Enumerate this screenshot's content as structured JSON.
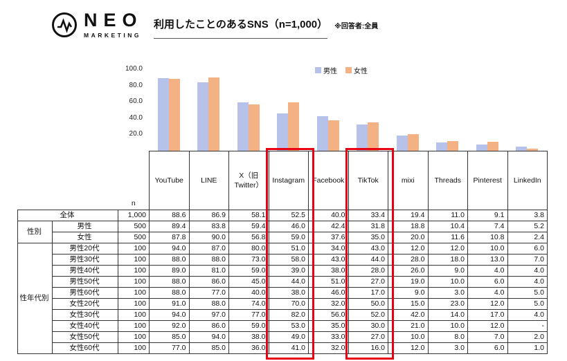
{
  "header": {
    "logo_name": "NEO",
    "logo_sub": "MARKETING",
    "title": "利用したことのあるSNS（n=1,000）",
    "note": "※回答者:全員"
  },
  "colors": {
    "male": "#b6c2e9",
    "female": "#f4b183",
    "highlight": "#e60012"
  },
  "chart_data": {
    "type": "bar",
    "title": "利用したことのあるSNS（n=1,000）",
    "categories": [
      "YouTube",
      "LINE",
      "X（旧Twitter）",
      "Instagram",
      "Facebook",
      "TikTok",
      "mixi",
      "Threads",
      "Pinterest",
      "LinkedIn"
    ],
    "series": [
      {
        "name": "男性",
        "values": [
          89.4,
          83.8,
          59.4,
          46.0,
          42.4,
          31.8,
          18.8,
          10.4,
          7.4,
          5.2
        ]
      },
      {
        "name": "女性",
        "values": [
          87.8,
          90.0,
          56.8,
          59.0,
          37.6,
          35.0,
          20.0,
          11.6,
          10.8,
          2.4
        ]
      }
    ],
    "ylim": [
      0,
      100
    ],
    "yticks": [
      {
        "label": "100.0",
        "value": 100
      },
      {
        "label": "80.0",
        "value": 80
      },
      {
        "label": "60.0",
        "value": 60
      },
      {
        "label": "40.0",
        "value": 40
      },
      {
        "label": "20.0",
        "value": 20
      }
    ],
    "legend_position": "top",
    "grid": false
  },
  "table": {
    "n_label": "n",
    "columns": [
      "YouTube",
      "LINE",
      "X（旧\nTwitter）",
      "Instagram",
      "Facebook",
      "TikTok",
      "mixi",
      "Threads",
      "Pinterest",
      "LinkedIn"
    ],
    "highlighted_columns": [
      "Instagram",
      "TikTok"
    ],
    "row_groups": [
      {
        "group": "",
        "rows": [
          {
            "label": "全体",
            "n": "1,000",
            "values": [
              "88.6",
              "86.9",
              "58.1",
              "52.5",
              "40.0",
              "33.4",
              "19.4",
              "11.0",
              "9.1",
              "3.8"
            ]
          }
        ]
      },
      {
        "group": "性別",
        "rows": [
          {
            "label": "男性",
            "n": "500",
            "values": [
              "89.4",
              "83.8",
              "59.4",
              "46.0",
              "42.4",
              "31.8",
              "18.8",
              "10.4",
              "7.4",
              "5.2"
            ]
          },
          {
            "label": "女性",
            "n": "500",
            "values": [
              "87.8",
              "90.0",
              "56.8",
              "59.0",
              "37.6",
              "35.0",
              "20.0",
              "11.6",
              "10.8",
              "2.4"
            ]
          }
        ]
      },
      {
        "group": "性年代別",
        "rows": [
          {
            "label": "男性20代",
            "n": "100",
            "values": [
              "94.0",
              "87.0",
              "80.0",
              "51.0",
              "34.0",
              "43.0",
              "12.0",
              "12.0",
              "10.0",
              "6.0"
            ]
          },
          {
            "label": "男性30代",
            "n": "100",
            "values": [
              "88.0",
              "88.0",
              "73.0",
              "58.0",
              "43.0",
              "44.0",
              "28.0",
              "18.0",
              "13.0",
              "7.0"
            ]
          },
          {
            "label": "男性40代",
            "n": "100",
            "values": [
              "89.0",
              "81.0",
              "59.0",
              "39.0",
              "38.0",
              "28.0",
              "26.0",
              "9.0",
              "4.0",
              "4.0"
            ]
          },
          {
            "label": "男性50代",
            "n": "100",
            "values": [
              "88.0",
              "86.0",
              "45.0",
              "44.0",
              "51.0",
              "27.0",
              "19.0",
              "10.0",
              "6.0",
              "4.0"
            ]
          },
          {
            "label": "男性60代",
            "n": "100",
            "values": [
              "88.0",
              "77.0",
              "40.0",
              "38.0",
              "46.0",
              "17.0",
              "9.0",
              "3.0",
              "4.0",
              "5.0"
            ]
          },
          {
            "label": "女性20代",
            "n": "100",
            "values": [
              "91.0",
              "88.0",
              "74.0",
              "70.0",
              "32.0",
              "50.0",
              "15.0",
              "23.0",
              "12.0",
              "5.0"
            ]
          },
          {
            "label": "女性30代",
            "n": "100",
            "values": [
              "94.0",
              "97.0",
              "77.0",
              "82.0",
              "56.0",
              "52.0",
              "42.0",
              "14.0",
              "17.0",
              "4.0"
            ]
          },
          {
            "label": "女性40代",
            "n": "100",
            "values": [
              "92.0",
              "86.0",
              "59.0",
              "53.0",
              "35.0",
              "30.0",
              "21.0",
              "10.0",
              "12.0",
              "-"
            ]
          },
          {
            "label": "女性50代",
            "n": "100",
            "values": [
              "85.0",
              "94.0",
              "38.0",
              "49.0",
              "33.0",
              "27.0",
              "10.0",
              "8.0",
              "7.0",
              "2.0"
            ]
          },
          {
            "label": "女性60代",
            "n": "100",
            "values": [
              "77.0",
              "85.0",
              "36.0",
              "41.0",
              "32.0",
              "16.0",
              "12.0",
              "3.0",
              "6.0",
              "1.0"
            ]
          }
        ]
      }
    ]
  }
}
